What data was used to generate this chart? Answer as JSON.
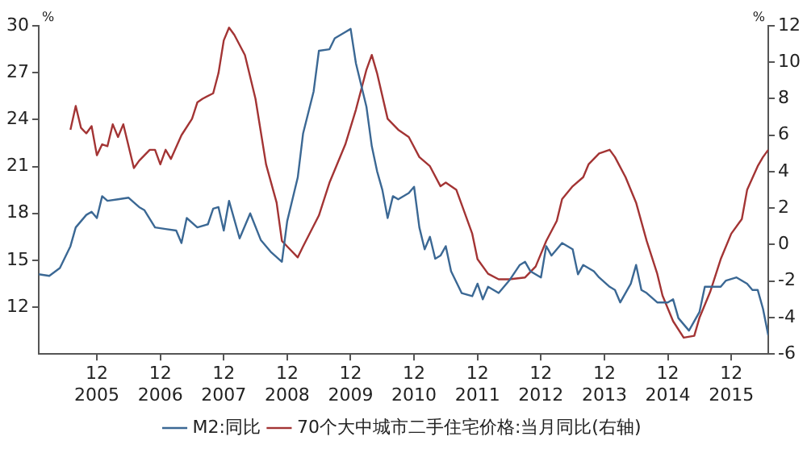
{
  "chart_data": {
    "type": "line",
    "ylabel": "%",
    "y2label": "%",
    "xlim": [
      "2005-01",
      "2016-07"
    ],
    "ylim": [
      9,
      30
    ],
    "y2lim": [
      -6,
      12
    ],
    "yticks": [
      12,
      15,
      18,
      21,
      24,
      27,
      30
    ],
    "y2ticks": [
      -6,
      -4,
      -2,
      0,
      2,
      4,
      6,
      8,
      10,
      12
    ],
    "xticks": [
      {
        "value": "2005-12",
        "label": "12\n2005"
      },
      {
        "value": "2006-12",
        "label": "12\n2006"
      },
      {
        "value": "2007-12",
        "label": "12\n2007"
      },
      {
        "value": "2008-12",
        "label": "12\n2008"
      },
      {
        "value": "2009-12",
        "label": "12\n2009"
      },
      {
        "value": "2010-12",
        "label": "12\n2010"
      },
      {
        "value": "2011-12",
        "label": "12\n2011"
      },
      {
        "value": "2012-12",
        "label": "12\n2012"
      },
      {
        "value": "2013-12",
        "label": "12\n2013"
      },
      {
        "value": "2014-12",
        "label": "12\n2014"
      },
      {
        "value": "2015-12",
        "label": "12\n2015"
      }
    ],
    "legend": "bottom",
    "marker": "none",
    "line_style": "solid",
    "series": [
      {
        "name": "M2:同比",
        "color": "#3b6894",
        "x": [
          "2005-01",
          "2005-03",
          "2005-05",
          "2005-07",
          "2005-08",
          "2005-10",
          "2005-11",
          "2005-12",
          "2006-01",
          "2006-02",
          "2006-04",
          "2006-06",
          "2006-08",
          "2006-09",
          "2006-11",
          "2007-01",
          "2007-03",
          "2007-04",
          "2007-05",
          "2007-07",
          "2007-09",
          "2007-10",
          "2007-11",
          "2007-12",
          "2008-01",
          "2008-03",
          "2008-05",
          "2008-07",
          "2008-09",
          "2008-11",
          "2008-12",
          "2009-02",
          "2009-03",
          "2009-05",
          "2009-06",
          "2009-08",
          "2009-09",
          "2009-11",
          "2009-12",
          "2010-01",
          "2010-03",
          "2010-04",
          "2010-05",
          "2010-06",
          "2010-07",
          "2010-08",
          "2010-09",
          "2010-11",
          "2010-12",
          "2011-01",
          "2011-02",
          "2011-03",
          "2011-04",
          "2011-05",
          "2011-06",
          "2011-07",
          "2011-09",
          "2011-11",
          "2011-12",
          "2012-01",
          "2012-02",
          "2012-04",
          "2012-06",
          "2012-08",
          "2012-09",
          "2012-10",
          "2012-12",
          "2013-01",
          "2013-02",
          "2013-04",
          "2013-06",
          "2013-07",
          "2013-08",
          "2013-10",
          "2013-11",
          "2014-01",
          "2014-02",
          "2014-03",
          "2014-05",
          "2014-06",
          "2014-07",
          "2014-08",
          "2014-10",
          "2014-12",
          "2015-01",
          "2015-02",
          "2015-04",
          "2015-06",
          "2015-07",
          "2015-10",
          "2015-11",
          "2016-01",
          "2016-03",
          "2016-04",
          "2016-05",
          "2016-06",
          "2016-07"
        ],
        "values": [
          14.1,
          14.0,
          14.5,
          15.9,
          17.1,
          17.9,
          18.1,
          17.7,
          19.1,
          18.8,
          18.9,
          19.0,
          18.4,
          18.2,
          17.1,
          17.0,
          16.9,
          16.1,
          17.7,
          17.1,
          17.3,
          18.3,
          18.4,
          16.9,
          18.8,
          16.4,
          18.0,
          16.3,
          15.5,
          14.9,
          17.5,
          20.3,
          23.1,
          25.8,
          28.4,
          28.5,
          29.2,
          29.6,
          29.8,
          27.6,
          24.8,
          22.3,
          20.7,
          19.5,
          17.7,
          19.1,
          18.9,
          19.3,
          19.7,
          17.1,
          15.7,
          16.5,
          15.1,
          15.3,
          15.9,
          14.3,
          12.9,
          12.7,
          13.5,
          12.5,
          13.3,
          12.9,
          13.7,
          14.7,
          14.9,
          14.3,
          13.9,
          15.9,
          15.3,
          16.1,
          15.7,
          14.1,
          14.7,
          14.3,
          13.9,
          13.3,
          13.1,
          12.3,
          13.5,
          14.7,
          13.1,
          12.9,
          12.3,
          12.3,
          12.5,
          11.3,
          10.5,
          11.7,
          13.3,
          13.3,
          13.7,
          13.9,
          13.5,
          13.1,
          13.1,
          11.9,
          10.2
        ]
      },
      {
        "name": "70个大中城市二手住宅价格:当月同比(右轴)",
        "color": "#a33434",
        "axis": "y2",
        "x": [
          "2005-07",
          "2005-08",
          "2005-09",
          "2005-10",
          "2005-11",
          "2005-12",
          "2006-01",
          "2006-02",
          "2006-03",
          "2006-04",
          "2006-05",
          "2006-07",
          "2006-08",
          "2006-10",
          "2006-11",
          "2006-12",
          "2007-01",
          "2007-02",
          "2007-04",
          "2007-06",
          "2007-07",
          "2007-08",
          "2007-10",
          "2007-11",
          "2007-12",
          "2008-01",
          "2008-02",
          "2008-04",
          "2008-06",
          "2008-08",
          "2008-10",
          "2008-11",
          "2008-12",
          "2009-02",
          "2009-03",
          "2009-06",
          "2009-08",
          "2009-09",
          "2009-11",
          "2010-01",
          "2010-03",
          "2010-04",
          "2010-05",
          "2010-07",
          "2010-09",
          "2010-11",
          "2011-01",
          "2011-03",
          "2011-05",
          "2011-06",
          "2011-08",
          "2011-09",
          "2011-11",
          "2011-12",
          "2012-02",
          "2012-04",
          "2012-06",
          "2012-09",
          "2012-11",
          "2013-01",
          "2013-03",
          "2013-04",
          "2013-06",
          "2013-08",
          "2013-09",
          "2013-11",
          "2014-01",
          "2014-02",
          "2014-04",
          "2014-06",
          "2014-08",
          "2014-10",
          "2014-11",
          "2015-01",
          "2015-03",
          "2015-05",
          "2015-06",
          "2015-08",
          "2015-10",
          "2015-12",
          "2016-02",
          "2016-03",
          "2016-05",
          "2016-06",
          "2016-07"
        ],
        "values": [
          6.3,
          7.6,
          6.4,
          6.1,
          6.5,
          4.9,
          5.5,
          5.4,
          6.6,
          5.9,
          6.6,
          4.2,
          4.6,
          5.2,
          5.2,
          4.4,
          5.2,
          4.7,
          6.0,
          6.9,
          7.8,
          8.0,
          8.3,
          9.4,
          11.2,
          11.9,
          11.5,
          10.4,
          8.0,
          4.4,
          2.3,
          0.2,
          -0.1,
          -0.7,
          -0.1,
          1.6,
          3.4,
          4.1,
          5.5,
          7.4,
          9.6,
          10.4,
          9.4,
          6.9,
          6.3,
          5.9,
          4.8,
          4.3,
          3.2,
          3.4,
          3.0,
          2.2,
          0.6,
          -0.8,
          -1.6,
          -1.9,
          -1.9,
          -1.8,
          -1.2,
          0.2,
          1.3,
          2.5,
          3.2,
          3.7,
          4.4,
          5.0,
          5.2,
          4.8,
          3.7,
          2.3,
          0.2,
          -1.6,
          -2.8,
          -4.2,
          -5.1,
          -5.0,
          -4.0,
          -2.6,
          -0.8,
          0.6,
          1.4,
          3.0,
          4.3,
          4.8,
          5.2
        ]
      }
    ]
  }
}
